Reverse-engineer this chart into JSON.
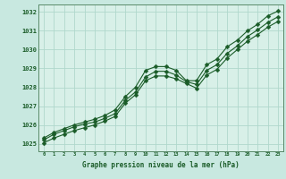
{
  "title": "Graphe pression niveau de la mer (hPa)",
  "bg_color": "#c8e8e0",
  "plot_bg_color": "#d8f0e8",
  "grid_color": "#b0d8cc",
  "line_color": "#1a5c28",
  "spine_color": "#5a8a6a",
  "tick_color": "#1a5c28",
  "xlim": [
    -0.5,
    23.5
  ],
  "ylim": [
    1024.6,
    1032.4
  ],
  "xticks": [
    0,
    1,
    2,
    3,
    4,
    5,
    6,
    7,
    8,
    9,
    10,
    11,
    12,
    13,
    14,
    15,
    16,
    17,
    18,
    19,
    20,
    21,
    22,
    23
  ],
  "yticks": [
    1025,
    1026,
    1027,
    1028,
    1029,
    1030,
    1031,
    1032
  ],
  "series1": [
    1025.3,
    1025.6,
    1025.8,
    1026.0,
    1026.15,
    1026.3,
    1026.5,
    1026.8,
    1027.5,
    1028.0,
    1028.9,
    1029.1,
    1029.1,
    1028.9,
    1028.35,
    1028.35,
    1029.2,
    1029.5,
    1030.15,
    1030.5,
    1031.0,
    1031.35,
    1031.8,
    1032.05
  ],
  "series2": [
    1025.2,
    1025.5,
    1025.7,
    1025.9,
    1026.05,
    1026.15,
    1026.35,
    1026.6,
    1027.3,
    1027.75,
    1028.55,
    1028.85,
    1028.85,
    1028.65,
    1028.3,
    1028.15,
    1028.9,
    1029.2,
    1029.8,
    1030.2,
    1030.7,
    1031.05,
    1031.45,
    1031.75
  ],
  "series3": [
    1025.05,
    1025.3,
    1025.5,
    1025.7,
    1025.85,
    1026.0,
    1026.2,
    1026.45,
    1027.15,
    1027.6,
    1028.35,
    1028.6,
    1028.6,
    1028.45,
    1028.2,
    1027.95,
    1028.65,
    1028.95,
    1029.55,
    1030.0,
    1030.45,
    1030.8,
    1031.2,
    1031.5
  ]
}
